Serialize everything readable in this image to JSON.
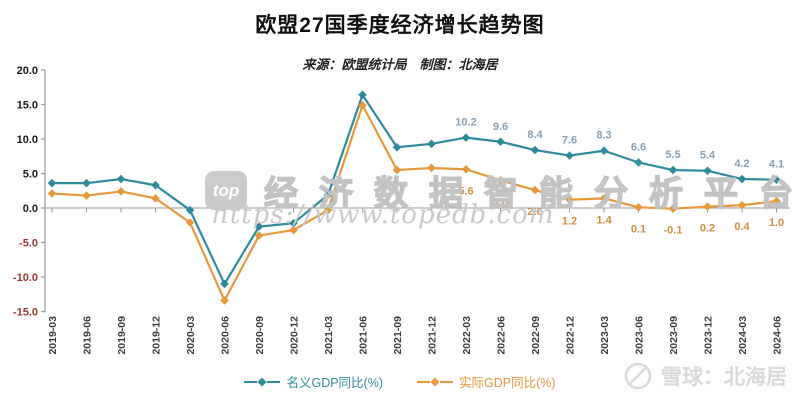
{
  "title": "欧盟27国季度经济增长趋势图",
  "subtitle": "来源：欧盟统计局　制图：北海居",
  "watermark": {
    "logo_text": "top",
    "platform_text": "经济数据智能分析平台",
    "url_text": "https://www.topedb.com",
    "footer_text": "雪球：北海居"
  },
  "colors": {
    "nominal": "#2E8B9C",
    "real": "#E49A3C",
    "nominal_value_label": "#87A0B3",
    "real_value_label": "#CE8F42",
    "axis": "#999999",
    "tick_label_positive": "#1a1a1a",
    "tick_label_negative": "#953735",
    "x_tick_label": "#3a3a3a"
  },
  "chart_data": {
    "type": "line",
    "title": "欧盟27国季度经济增长趋势图",
    "subtitle": "来源：欧盟统计局　制图：北海居",
    "categories": [
      "2019-03",
      "2019-06",
      "2019-09",
      "2019-12",
      "2020-03",
      "2020-06",
      "2020-09",
      "2020-12",
      "2021-03",
      "2021-06",
      "2021-09",
      "2021-12",
      "2022-03",
      "2022-06",
      "2022-09",
      "2022-12",
      "2023-03",
      "2023-06",
      "2023-09",
      "2023-12",
      "2024-03",
      "2024-06"
    ],
    "series": [
      {
        "name": "名义GDP同比(%)",
        "color": "#2E8B9C",
        "marker": "diamond",
        "values": [
          3.6,
          3.6,
          4.2,
          3.3,
          -0.3,
          -11.0,
          -2.7,
          -2.2,
          1.9,
          16.4,
          8.8,
          9.3,
          10.2,
          9.6,
          8.4,
          7.6,
          8.3,
          6.6,
          5.5,
          5.4,
          4.2,
          4.1
        ],
        "labels": [
          null,
          null,
          null,
          null,
          null,
          null,
          null,
          null,
          null,
          null,
          null,
          null,
          "10.2",
          "9.6",
          "8.4",
          "7.6",
          "8.3",
          "6.6",
          "5.5",
          "5.4",
          "4.2",
          "4.1"
        ]
      },
      {
        "name": "实际GDP同比(%)",
        "color": "#E49A3C",
        "marker": "diamond",
        "values": [
          2.1,
          1.8,
          2.4,
          1.4,
          -2.1,
          -13.4,
          -4.0,
          -3.2,
          -0.3,
          14.9,
          5.5,
          5.8,
          5.6,
          4.0,
          2.6,
          1.2,
          1.4,
          0.1,
          -0.1,
          0.2,
          0.4,
          1.0
        ],
        "labels": [
          null,
          null,
          null,
          null,
          null,
          null,
          null,
          null,
          null,
          null,
          null,
          null,
          "5.6",
          "4.0",
          "2.6",
          "1.2",
          "1.4",
          "0.1",
          "-0.1",
          "0.2",
          "0.4",
          "1.0"
        ]
      }
    ],
    "ylim": [
      -15,
      20
    ],
    "y_ticks": [
      "20.0",
      "15.0",
      "10.0",
      "5.0",
      "0.0",
      "-5.0",
      "-10.0",
      "-15.0"
    ],
    "grid": false,
    "legend_position": "bottom",
    "x_label_rotation": -90
  }
}
